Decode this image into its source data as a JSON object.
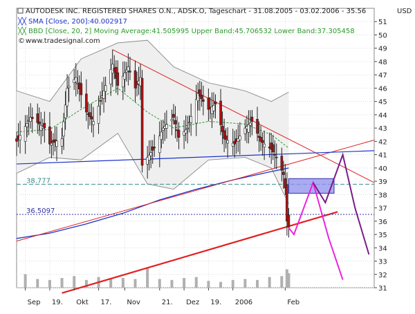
{
  "header": {
    "line1": "AUTODESK INC. REGISTERED SHARES O.N., ADSK.O, Tageschart - 31.08.2005 - 03.02.2006 - 35.56",
    "line2": "SMA [Close, 200]:40.002917",
    "line3": "BBD [Close, 20, 2] Moving Average:41.505995 Upper Band:45.706532 Lower Band:37.305458",
    "line4": "www.tradesignal.com",
    "currency": "USD"
  },
  "colors": {
    "background": "#ffffff",
    "candle_fill": "#b01010",
    "candle_line": "#202020",
    "sma_line": "#1a33cc",
    "bollinger": "#909090",
    "bollinger_fill": "#efefef",
    "moving_average": "#2a9a2a",
    "trendline_red": "#e02020",
    "horizontal_line": "#3a8a8a",
    "dotted_line": "#3030a0",
    "forecast_magenta": "#ee22dd",
    "forecast_purple": "#7a1a8a",
    "zone_box": "#8f8fee",
    "volume": "#b0b0b0"
  },
  "chart_data": {
    "type": "candlestick",
    "y_axis": {
      "min": 31,
      "max": 52,
      "ticks": [
        31,
        32,
        33,
        34,
        35,
        36,
        37,
        38,
        39,
        40,
        41,
        42,
        43,
        44,
        45,
        46,
        47,
        48,
        49,
        50,
        51
      ],
      "position": "right"
    },
    "x_axis": {
      "start": "2005-08-31",
      "end": "2006-03-24",
      "labels": [
        {
          "text": "Sep",
          "date": "2005-09-05"
        },
        {
          "text": "19.",
          "date": "2005-09-19"
        },
        {
          "text": "Okt",
          "date": "2005-10-03"
        },
        {
          "text": "17.",
          "date": "2005-10-17"
        },
        {
          "text": "Nov",
          "date": "2005-11-01"
        },
        {
          "text": "21.",
          "date": "2005-11-21"
        },
        {
          "text": "Dez",
          "date": "2005-12-05"
        },
        {
          "text": "19.",
          "date": "2005-12-19"
        },
        {
          "text": "2006",
          "date": "2006-01-02"
        },
        {
          "text": "Feb",
          "date": "2006-02-01"
        }
      ]
    },
    "grid": true,
    "close_path": [
      {
        "date": "2005-08-31",
        "close": 42.0
      },
      {
        "date": "2005-09-08",
        "close": 43.8
      },
      {
        "date": "2005-09-16",
        "close": 43.0
      },
      {
        "date": "2005-09-19",
        "close": 41.8
      },
      {
        "date": "2005-09-26",
        "close": 42.2
      },
      {
        "date": "2005-09-29",
        "close": 46.0
      },
      {
        "date": "2005-10-04",
        "close": 46.8
      },
      {
        "date": "2005-10-10",
        "close": 44.2
      },
      {
        "date": "2005-10-14",
        "close": 43.5
      },
      {
        "date": "2005-10-20",
        "close": 45.8
      },
      {
        "date": "2005-10-25",
        "close": 47.8
      },
      {
        "date": "2005-10-28",
        "close": 46.2
      },
      {
        "date": "2005-11-03",
        "close": 47.6
      },
      {
        "date": "2005-11-07",
        "close": 46.0
      },
      {
        "date": "2005-11-10",
        "close": 46.8
      },
      {
        "date": "2005-11-11",
        "close": 40.2
      },
      {
        "date": "2005-11-14",
        "close": 40.8
      },
      {
        "date": "2005-11-18",
        "close": 41.5
      },
      {
        "date": "2005-11-23",
        "close": 43.0
      },
      {
        "date": "2005-11-29",
        "close": 43.8
      },
      {
        "date": "2005-12-02",
        "close": 42.3
      },
      {
        "date": "2005-12-07",
        "close": 43.0
      },
      {
        "date": "2005-12-13",
        "close": 45.6
      },
      {
        "date": "2005-12-19",
        "close": 44.4
      },
      {
        "date": "2005-12-23",
        "close": 44.8
      },
      {
        "date": "2005-12-28",
        "close": 42.2
      },
      {
        "date": "2006-01-03",
        "close": 41.8
      },
      {
        "date": "2006-01-09",
        "close": 43.0
      },
      {
        "date": "2006-01-13",
        "close": 43.5
      },
      {
        "date": "2006-01-18",
        "close": 42.0
      },
      {
        "date": "2006-01-24",
        "close": 41.4
      },
      {
        "date": "2006-01-27",
        "close": 40.8
      },
      {
        "date": "2006-01-31",
        "close": 39.5
      },
      {
        "date": "2006-02-01",
        "close": 38.5
      },
      {
        "date": "2006-02-02",
        "close": 36.0
      },
      {
        "date": "2006-02-03",
        "close": 35.56
      }
    ],
    "sma_200": [
      {
        "date": "2005-08-31",
        "value": 34.7
      },
      {
        "date": "2005-09-19",
        "value": 35.1
      },
      {
        "date": "2005-10-10",
        "value": 35.8
      },
      {
        "date": "2005-10-31",
        "value": 36.6
      },
      {
        "date": "2005-11-21",
        "value": 37.6
      },
      {
        "date": "2005-12-12",
        "value": 38.4
      },
      {
        "date": "2006-01-02",
        "value": 39.1
      },
      {
        "date": "2006-01-23",
        "value": 39.7
      },
      {
        "date": "2006-02-03",
        "value": 40.0
      }
    ],
    "bollinger": {
      "upper": [
        {
          "date": "2005-08-31",
          "value": 45.8
        },
        {
          "date": "2005-09-19",
          "value": 45.0
        },
        {
          "date": "2005-10-07",
          "value": 48.2
        },
        {
          "date": "2005-10-28",
          "value": 49.4
        },
        {
          "date": "2005-11-14",
          "value": 49.6
        },
        {
          "date": "2005-11-29",
          "value": 47.6
        },
        {
          "date": "2005-12-19",
          "value": 46.4
        },
        {
          "date": "2006-01-09",
          "value": 45.8
        },
        {
          "date": "2006-01-24",
          "value": 45.0
        },
        {
          "date": "2006-02-03",
          "value": 45.7
        }
      ],
      "lower": [
        {
          "date": "2005-08-31",
          "value": 39.6
        },
        {
          "date": "2005-09-19",
          "value": 40.8
        },
        {
          "date": "2005-10-07",
          "value": 40.6
        },
        {
          "date": "2005-10-28",
          "value": 42.6
        },
        {
          "date": "2005-11-14",
          "value": 38.8
        },
        {
          "date": "2005-11-29",
          "value": 38.4
        },
        {
          "date": "2005-12-19",
          "value": 40.6
        },
        {
          "date": "2006-01-09",
          "value": 40.8
        },
        {
          "date": "2006-01-24",
          "value": 40.0
        },
        {
          "date": "2006-02-03",
          "value": 37.3
        }
      ],
      "middle": [
        {
          "date": "2005-08-31",
          "value": 42.7
        },
        {
          "date": "2005-09-19",
          "value": 42.9
        },
        {
          "date": "2005-10-07",
          "value": 44.4
        },
        {
          "date": "2005-10-28",
          "value": 46.0
        },
        {
          "date": "2005-11-14",
          "value": 44.2
        },
        {
          "date": "2005-11-29",
          "value": 43.0
        },
        {
          "date": "2005-12-19",
          "value": 43.5
        },
        {
          "date": "2006-01-09",
          "value": 43.3
        },
        {
          "date": "2006-01-24",
          "value": 42.5
        },
        {
          "date": "2006-02-03",
          "value": 41.5
        }
      ]
    },
    "levels": [
      {
        "label": "38.777",
        "value": 38.777,
        "style": "dashed"
      },
      {
        "label": "36.5097",
        "value": 36.5097,
        "style": "dotted"
      }
    ],
    "trendlines": [
      {
        "name": "resistance",
        "points": [
          {
            "date": "2005-10-25",
            "value": 48.9
          },
          {
            "date": "2006-03-24",
            "value": 38.9
          }
        ]
      },
      {
        "name": "upper-support",
        "points": [
          {
            "date": "2005-08-31",
            "value": 34.5
          },
          {
            "date": "2006-03-24",
            "value": 42.1
          }
        ]
      },
      {
        "name": "lower-support",
        "points": [
          {
            "date": "2005-09-26",
            "value": 30.6
          },
          {
            "date": "2006-03-03",
            "value": 36.7
          }
        ]
      },
      {
        "name": "neckline",
        "points": [
          {
            "date": "2005-08-31",
            "value": 40.3
          },
          {
            "date": "2006-03-24",
            "value": 41.3
          }
        ]
      }
    ],
    "zone": {
      "from": "2006-02-03",
      "to": "2006-03-01",
      "low": 38.1,
      "high": 39.2
    },
    "forecast_magenta": [
      {
        "date": "2006-02-03",
        "value": 35.5
      },
      {
        "date": "2006-02-06",
        "value": 35.0
      },
      {
        "date": "2006-02-17",
        "value": 38.9
      },
      {
        "date": "2006-02-26",
        "value": 34.7
      },
      {
        "date": "2006-03-06",
        "value": 31.6
      }
    ],
    "forecast_purple": [
      {
        "date": "2006-02-17",
        "value": 38.9
      },
      {
        "date": "2006-02-24",
        "value": 37.4
      },
      {
        "date": "2006-03-06",
        "value": 41.0
      },
      {
        "date": "2006-03-13",
        "value": 37.0
      },
      {
        "date": "2006-03-21",
        "value": 33.5
      }
    ],
    "volume": [
      {
        "date": "2005-09-05",
        "value": 0.7
      },
      {
        "date": "2005-09-12",
        "value": 0.45
      },
      {
        "date": "2005-09-19",
        "value": 0.4
      },
      {
        "date": "2005-09-26",
        "value": 0.5
      },
      {
        "date": "2005-10-03",
        "value": 0.6
      },
      {
        "date": "2005-10-10",
        "value": 0.4
      },
      {
        "date": "2005-10-17",
        "value": 0.55
      },
      {
        "date": "2005-10-24",
        "value": 0.45
      },
      {
        "date": "2005-10-31",
        "value": 0.5
      },
      {
        "date": "2005-11-07",
        "value": 0.45
      },
      {
        "date": "2005-11-14",
        "value": 1.0
      },
      {
        "date": "2005-11-21",
        "value": 0.45
      },
      {
        "date": "2005-11-28",
        "value": 0.4
      },
      {
        "date": "2005-12-05",
        "value": 0.5
      },
      {
        "date": "2005-12-12",
        "value": 0.55
      },
      {
        "date": "2005-12-19",
        "value": 0.35
      },
      {
        "date": "2005-12-26",
        "value": 0.3
      },
      {
        "date": "2006-01-02",
        "value": 0.4
      },
      {
        "date": "2006-01-09",
        "value": 0.45
      },
      {
        "date": "2006-01-16",
        "value": 0.4
      },
      {
        "date": "2006-01-23",
        "value": 0.55
      },
      {
        "date": "2006-01-30",
        "value": 0.6
      },
      {
        "date": "2006-02-02",
        "value": 0.95
      },
      {
        "date": "2006-02-03",
        "value": 0.75
      }
    ]
  }
}
